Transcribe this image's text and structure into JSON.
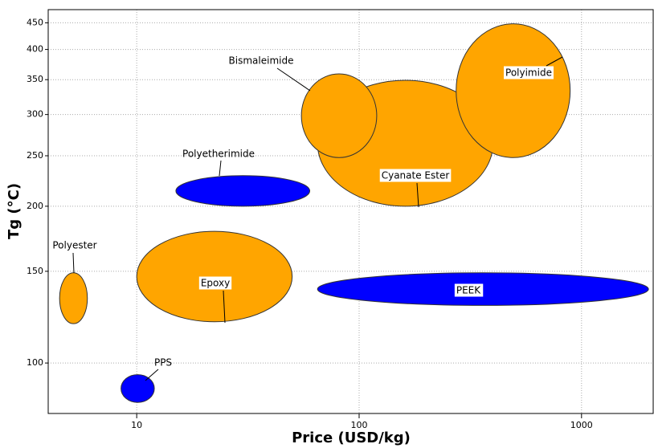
{
  "chart_data": {
    "type": "ellipse-range",
    "x_label": "Price (USD/kg)",
    "y_label": "Tg (°C)",
    "x_log": true,
    "y_log": true,
    "grid": true,
    "xlim": [
      4,
      2100
    ],
    "ylim": [
      80,
      477
    ],
    "xticks": [
      10,
      100,
      1000
    ],
    "yticks": [
      100,
      150,
      200,
      250,
      300,
      350,
      400,
      450
    ],
    "series": [
      {
        "name": "Polyester",
        "color": "#ffa500",
        "x": [
          4.5,
          6
        ],
        "y": [
          119,
          149
        ]
      },
      {
        "name": "PPS",
        "color": "#0000ff",
        "x": [
          8.5,
          12
        ],
        "y": [
          84,
          95
        ]
      },
      {
        "name": "Epoxy",
        "color": "#ffa500",
        "x": [
          10,
          50
        ],
        "y": [
          120,
          179
        ]
      },
      {
        "name": "Polyetherimide",
        "color": "#0000ff",
        "x": [
          15,
          60
        ],
        "y": [
          200,
          229
        ]
      },
      {
        "name": "PEEK",
        "color": "#0000ff",
        "x": [
          65,
          2000
        ],
        "y": [
          129,
          149
        ]
      },
      {
        "name": "Cyanate Ester",
        "color": "#ffa500",
        "x": [
          65,
          400
        ],
        "y": [
          200,
          349
        ]
      },
      {
        "name": "Bismaleimide",
        "color": "#ffa500",
        "x": [
          55,
          120
        ],
        "y": [
          248,
          359
        ]
      },
      {
        "name": "Polyimide",
        "color": "#ffa500",
        "x": [
          273,
          889
        ],
        "y": [
          248,
          448
        ]
      }
    ]
  }
}
